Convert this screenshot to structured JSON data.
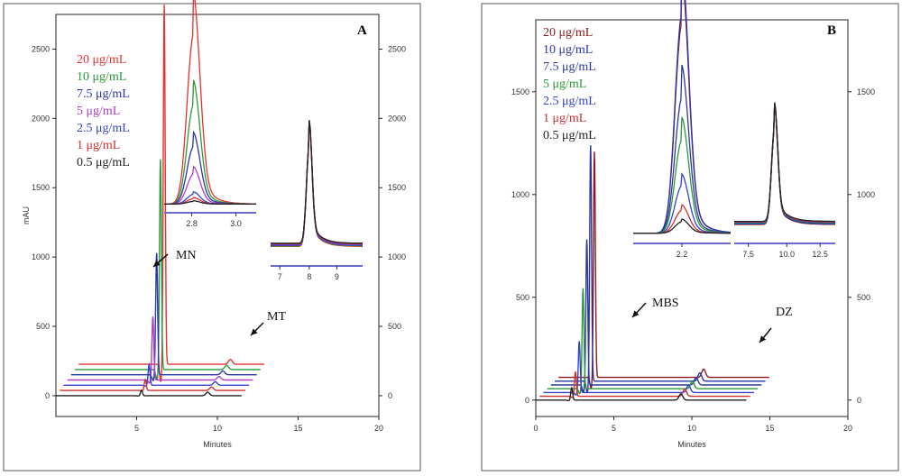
{
  "chart_data": [
    {
      "type": "line",
      "panel_label": "A",
      "xlabel": "Minutes",
      "ylabel": "mAU",
      "xlim": [
        0,
        20
      ],
      "ylim": [
        -150,
        2750
      ],
      "xticks": [
        "5",
        "10",
        "15",
        "20"
      ],
      "yticks": [
        "0",
        "500",
        "1000",
        "1500",
        "2000",
        "2500"
      ],
      "right_yticks": [
        "0",
        "500",
        "1000",
        "1500",
        "2000",
        "2500"
      ],
      "legend": [
        "20 μg/mL",
        "10 μg/mL",
        "7.5 μg/mL",
        "5 μg/mL",
        "2.5 μg/mL",
        "1 μg/mL",
        "0.5 μg/mL"
      ],
      "annotations": [
        "MN",
        "MT"
      ],
      "series": [
        {
          "name": "20 μg/mL",
          "color": "#e8312e",
          "peak1_height": 2600,
          "peak2_height": 35
        },
        {
          "name": "10 μg/mL",
          "color": "#2a9a3a",
          "peak1_height": 1520,
          "peak2_height": 30
        },
        {
          "name": "7.5 μg/mL",
          "color": "#2b35a8",
          "peak1_height": 880,
          "peak2_height": 28
        },
        {
          "name": "5 μg/mL",
          "color": "#b040c0",
          "peak1_height": 460,
          "peak2_height": 25
        },
        {
          "name": "2.5 μg/mL",
          "color": "#3344cc",
          "peak1_height": 150,
          "peak2_height": 25
        },
        {
          "name": "1 μg/mL",
          "color": "#d03030",
          "peak1_height": 80,
          "peak2_height": 25
        },
        {
          "name": "0.5 μg/mL",
          "color": "#222222",
          "peak1_height": 40,
          "peak2_height": 25
        }
      ],
      "insets": [
        {
          "xticks": [
            "2.8",
            "3.0"
          ]
        },
        {
          "xticks": [
            "7",
            "8",
            "9"
          ]
        }
      ]
    },
    {
      "type": "line",
      "panel_label": "B",
      "xlabel": "Minutes",
      "ylabel": "",
      "xlim": [
        0,
        20
      ],
      "ylim": [
        -80,
        1850
      ],
      "xticks": [
        "0",
        "5",
        "10",
        "15",
        "20"
      ],
      "yticks": [
        "0",
        "500",
        "1000",
        "1500"
      ],
      "right_yticks": [
        "0",
        "500",
        "1000",
        "1500"
      ],
      "legend": [
        "20 μg/mL",
        "10 μg/mL",
        "7.5 μg/mL",
        "5 μg/mL",
        "2.5 μg/mL",
        "1 μg/mL",
        "0.5 μg/mL"
      ],
      "annotations": [
        "MBS",
        "DZ"
      ],
      "series": [
        {
          "name": "20 μg/mL",
          "color": "#8a1a1a",
          "peak1_height": 1100,
          "peak2_height": 40
        },
        {
          "name": "10 μg/mL",
          "color": "#2b35a8",
          "peak1_height": 1150,
          "peak2_height": 40
        },
        {
          "name": "7.5 μg/mL",
          "color": "#2a3a9a",
          "peak1_height": 710,
          "peak2_height": 35
        },
        {
          "name": "5 μg/mL",
          "color": "#2a9a3a",
          "peak1_height": 490,
          "peak2_height": 35
        },
        {
          "name": "2.5 μg/mL",
          "color": "#3344cc",
          "peak1_height": 250,
          "peak2_height": 35
        },
        {
          "name": "1 μg/mL",
          "color": "#d03030",
          "peak1_height": 120,
          "peak2_height": 35
        },
        {
          "name": "0.5 μg/mL",
          "color": "#222222",
          "peak1_height": 60,
          "peak2_height": 30
        }
      ],
      "insets": [
        {
          "xticks": [
            "2.2"
          ]
        },
        {
          "xticks": [
            "7.5",
            "10.0",
            "12.5"
          ]
        }
      ]
    }
  ]
}
